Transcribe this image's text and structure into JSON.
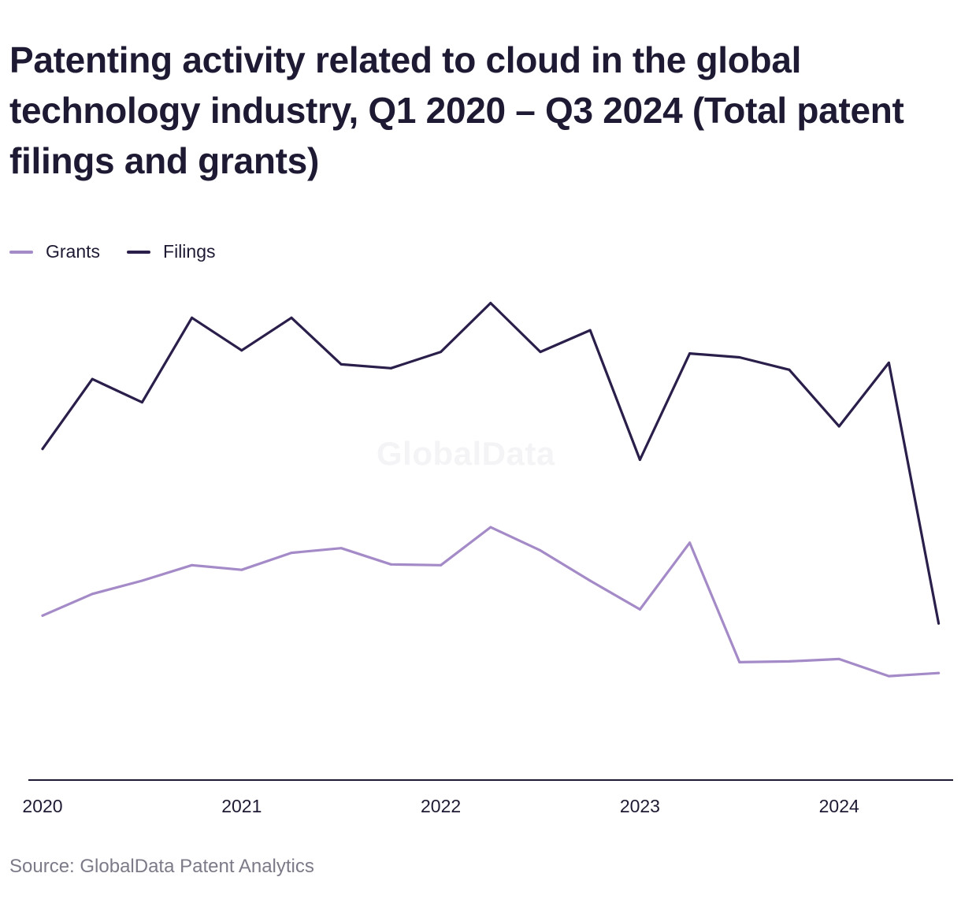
{
  "title": "Patenting activity related to cloud in the global technology industry, Q1 2020 – Q3 2024 (Total patent filings and grants)",
  "source": "Source: GlobalData Patent Analytics",
  "watermark": "GlobalData",
  "colors": {
    "grants": "#a48bc8",
    "filings": "#2a1e4a",
    "axis": "#1f1a33"
  },
  "legend": [
    {
      "name": "Grants",
      "color": "#a48bc8"
    },
    {
      "name": "Filings",
      "color": "#2a1e4a"
    }
  ],
  "chart_data": {
    "type": "line",
    "title": "Patenting activity related to cloud in the global technology industry, Q1 2020 – Q3 2024 (Total patent filings and grants)",
    "xlabel": "",
    "ylabel": "",
    "x": [
      "Q1 2020",
      "Q2 2020",
      "Q3 2020",
      "Q4 2020",
      "Q1 2021",
      "Q2 2021",
      "Q3 2021",
      "Q4 2021",
      "Q1 2022",
      "Q2 2022",
      "Q3 2022",
      "Q4 2022",
      "Q1 2023",
      "Q2 2023",
      "Q3 2023",
      "Q4 2023",
      "Q1 2024",
      "Q2 2024",
      "Q3 2024"
    ],
    "x_ticks": [
      "2020",
      "2021",
      "2022",
      "2023",
      "2024"
    ],
    "ylim": [
      0,
      6400
    ],
    "grid": false,
    "legend_position": "top-left",
    "series": [
      {
        "name": "Grants",
        "values": [
          2120,
          2400,
          2570,
          2770,
          2710,
          2930,
          2990,
          2780,
          2770,
          3260,
          2960,
          2570,
          2200,
          3060,
          1520,
          1530,
          1560,
          1340,
          1380
        ]
      },
      {
        "name": "Filings",
        "values": [
          4270,
          5170,
          4870,
          5960,
          5540,
          5960,
          5360,
          5310,
          5520,
          6150,
          5520,
          5800,
          4130,
          5500,
          5450,
          5290,
          4560,
          5380,
          2020
        ]
      }
    ]
  }
}
